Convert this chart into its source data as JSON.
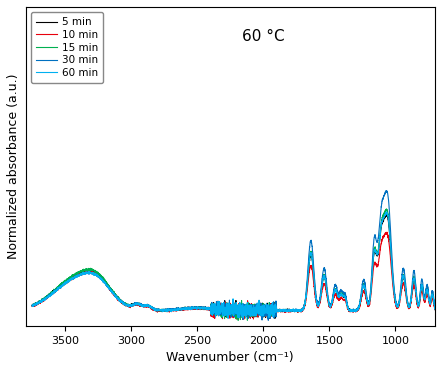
{
  "title": "60 °C",
  "xlabel": "Wavenumber (cm⁻¹)",
  "ylabel": "Normalized absorbance (a.u.)",
  "xmin": 700,
  "xmax": 3800,
  "legend_labels": [
    "5 min",
    "10 min",
    "15 min",
    "30 min",
    "60 min"
  ],
  "colors": [
    "#000000",
    "#e8000d",
    "#00b050",
    "#0070c0",
    "#00b0f0"
  ],
  "linewidth": 0.8,
  "background_color": "#ffffff",
  "title_fontsize": 11,
  "label_fontsize": 9,
  "tick_fontsize": 8,
  "ylim": [
    -0.05,
    1.6
  ],
  "yticks": []
}
